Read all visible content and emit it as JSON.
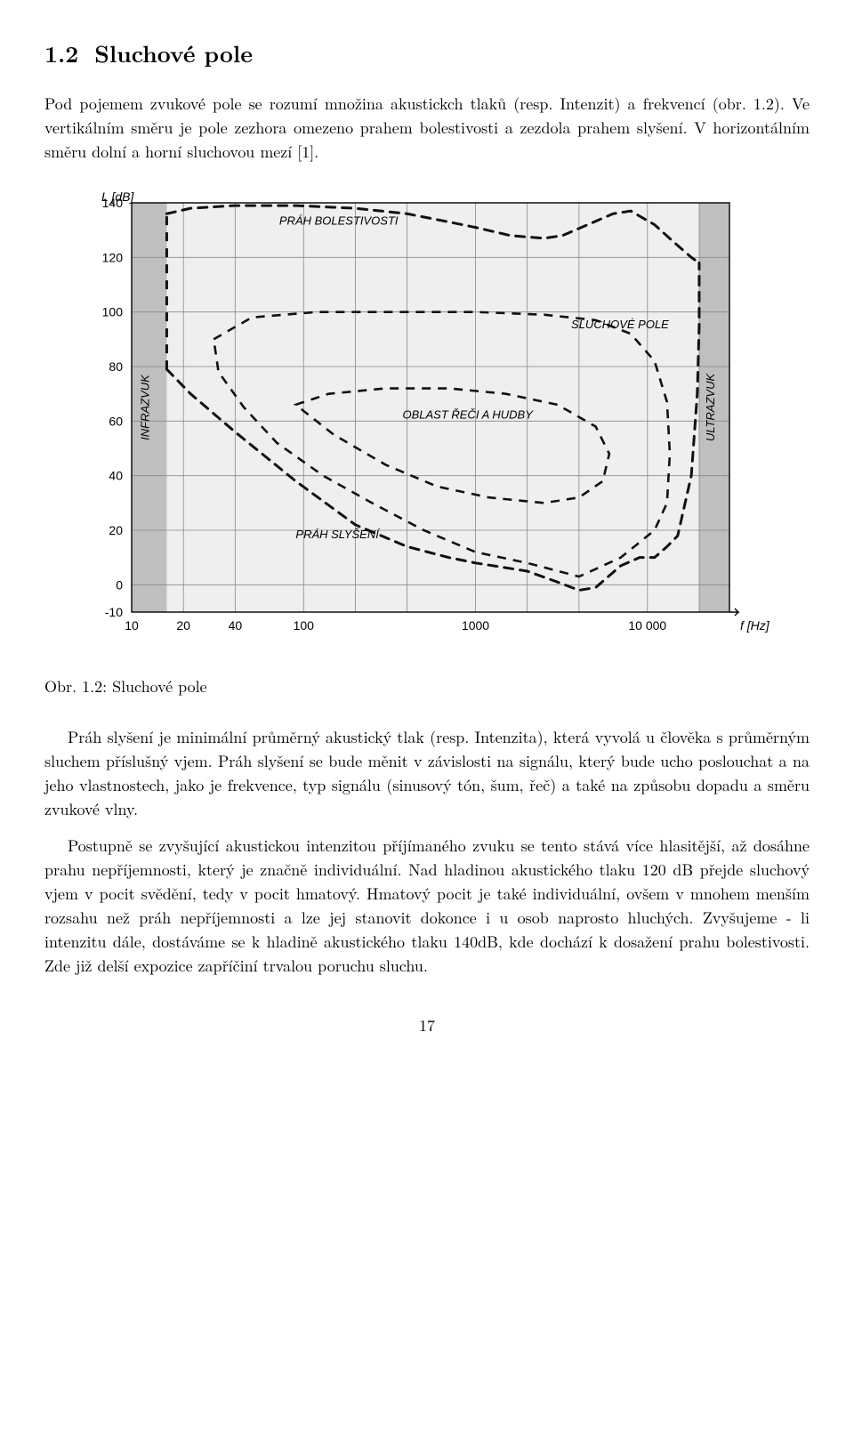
{
  "section": {
    "number": "1.2",
    "title": "Sluchové pole"
  },
  "para_intro": "Pod pojemem zvukové pole se rozumí množina akustickch tlaků (resp. Intenzit) a frekvencí (obr. 1.2). Ve vertikálním směru je pole zezhora omezeno prahem bolestivosti a zezdola prahem slyšení. V horizontálním směru dolní a horní sluchovou mezí [1].",
  "figure": {
    "caption": "Obr. 1.2: Sluchové pole",
    "axes": {
      "y_label": "L [dB]",
      "x_label": "f [Hz]",
      "y_ticks": [
        -10,
        0,
        20,
        40,
        60,
        80,
        100,
        120,
        140
      ],
      "x_ticks": [
        10,
        20,
        40,
        100,
        1000,
        10000
      ],
      "x_scale": "log",
      "ylim": [
        -10,
        140
      ],
      "xlim": [
        10,
        30000
      ]
    },
    "grid_color": "#888",
    "bg_color": "#efefef",
    "side_band_color": "#bfbfbf",
    "curve_color": "#111",
    "curve_dash": "10 8",
    "curve_width": 3,
    "inner_curve_width": 2.6,
    "labels": {
      "infrazvuk": "INFRAZVUK",
      "ultrazvuk": "ULTRAZVUK",
      "prah_bolestivosti": "PRÁH BOLESTIVOSTI",
      "sluchove_pole": "SLUCHOVÉ POLE",
      "oblast_rec_hudba": "OBLAST ŘEČI A HUDBY",
      "prah_slyseni": "PRÁH SLYŠENÍ"
    },
    "label_font_size": 13,
    "axis_font_size": 14,
    "curves": {
      "pain_threshold": [
        [
          16,
          136
        ],
        [
          22,
          138
        ],
        [
          40,
          139
        ],
        [
          90,
          139
        ],
        [
          200,
          138
        ],
        [
          400,
          136
        ],
        [
          700,
          133
        ],
        [
          1000,
          131
        ],
        [
          1600,
          128
        ],
        [
          2500,
          127
        ],
        [
          3200,
          128
        ],
        [
          4500,
          132
        ],
        [
          6300,
          136
        ],
        [
          8000,
          137
        ],
        [
          11000,
          132
        ],
        [
          14000,
          126
        ],
        [
          18000,
          120
        ],
        [
          20000,
          118
        ]
      ],
      "hearing_threshold": [
        [
          16,
          79
        ],
        [
          22,
          70
        ],
        [
          40,
          56
        ],
        [
          90,
          38
        ],
        [
          200,
          22
        ],
        [
          400,
          14
        ],
        [
          700,
          10
        ],
        [
          1000,
          8
        ],
        [
          2000,
          5
        ],
        [
          3000,
          1
        ],
        [
          4000,
          -2
        ],
        [
          5000,
          -1
        ],
        [
          7000,
          7
        ],
        [
          9000,
          10
        ],
        [
          11000,
          10
        ],
        [
          13000,
          14
        ],
        [
          15000,
          18
        ],
        [
          18000,
          40
        ],
        [
          19500,
          70
        ],
        [
          20000,
          95
        ],
        [
          20000,
          118
        ]
      ],
      "outer_left": [
        [
          16,
          79
        ],
        [
          16,
          136
        ]
      ],
      "speech_music_outer": [
        [
          30,
          90
        ],
        [
          50,
          98
        ],
        [
          120,
          100
        ],
        [
          400,
          100
        ],
        [
          1000,
          100
        ],
        [
          2500,
          99
        ],
        [
          5000,
          97
        ],
        [
          8000,
          92
        ],
        [
          11000,
          82
        ],
        [
          13000,
          67
        ],
        [
          13500,
          48
        ],
        [
          13000,
          30
        ],
        [
          11000,
          20
        ],
        [
          7000,
          10
        ],
        [
          4000,
          3
        ],
        [
          2000,
          8
        ],
        [
          1000,
          12
        ],
        [
          500,
          20
        ],
        [
          250,
          30
        ],
        [
          130,
          40
        ],
        [
          70,
          52
        ],
        [
          45,
          65
        ],
        [
          32,
          78
        ],
        [
          30,
          90
        ]
      ],
      "speech_music_inner": [
        [
          90,
          66
        ],
        [
          140,
          70
        ],
        [
          300,
          72
        ],
        [
          700,
          72
        ],
        [
          1500,
          70
        ],
        [
          3000,
          66
        ],
        [
          5000,
          58
        ],
        [
          6000,
          48
        ],
        [
          5500,
          38
        ],
        [
          4000,
          32
        ],
        [
          2500,
          30
        ],
        [
          1200,
          32
        ],
        [
          600,
          36
        ],
        [
          300,
          44
        ],
        [
          150,
          55
        ],
        [
          90,
          66
        ]
      ]
    }
  },
  "para_threshold": "Práh slyšení je minimální průměrný akustický tlak (resp. Intenzita), která vyvolá u člověka s průměrným sluchem příslušný vjem. Práh slyšení se bude měnit v závislosti na signálu, který bude ucho poslouchat a na jeho vlastnostech, jako je frekvence, typ signálu (sinusový tón, šum, řeč) a také na způsobu dopadu a směru zvukové vlny.",
  "para_intensity": "Postupně se zvyšující akustickou intenzitou příjímaného zvuku se tento stává více hlasitější, až dosáhne prahu nepříjemnosti, který je značně individuální. Nad hladinou akustického tlaku 120 dB přejde sluchový vjem v pocit svědění, tedy v pocit hmatový. Hmatový pocit je také individuální, ovšem v mnohem menším rozsahu než práh nepříjemnosti a lze jej stanovit dokonce i u osob naprosto hluchých. Zvyšujeme - li intenzitu dále, dostáváme se k hladině akustického tlaku 140dB, kde dochází k dosažení prahu bolestivosti. Zde již delší expozice zapříčiní trvalou poruchu sluchu.",
  "page_number": "17"
}
